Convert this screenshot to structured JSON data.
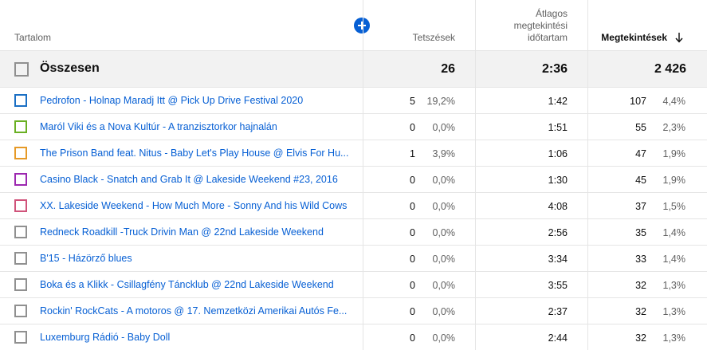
{
  "header": {
    "content_label": "Tartalom",
    "likes_label": "Tetszések",
    "avg_view_label_lines": [
      "Átlagos",
      "megtekintési",
      "időtartam"
    ],
    "views_label": "Megtekintések"
  },
  "icons": {
    "add": "plus-circle-icon",
    "sort": "arrow-down-icon"
  },
  "colors": {
    "accent": "#065fd4",
    "total_bg": "#f2f2f2"
  },
  "total": {
    "label": "Összesen",
    "likes": "26",
    "avg_duration": "2:36",
    "views": "2 426"
  },
  "rows": [
    {
      "title": "Pedrofon - Holnap Maradj Itt @ Pick Up Drive Festival 2020",
      "likes": "5",
      "likes_pct": "19,2%",
      "avg_duration": "1:42",
      "views": "107",
      "views_pct": "4,4%",
      "color": "#1a6fc4"
    },
    {
      "title": "Maról Viki és a Nova Kultúr - A tranzisztorkor hajnalán",
      "likes": "0",
      "likes_pct": "0,0%",
      "avg_duration": "1:51",
      "views": "55",
      "views_pct": "2,3%",
      "color": "#6ab023"
    },
    {
      "title": "The Prison Band feat. Nitus - Baby Let's Play House @ Elvis For Hu...",
      "likes": "1",
      "likes_pct": "3,9%",
      "avg_duration": "1:06",
      "views": "47",
      "views_pct": "1,9%",
      "color": "#e69a27"
    },
    {
      "title": "Casino Black - Snatch and Grab It @ Lakeside Weekend #23, 2016",
      "likes": "0",
      "likes_pct": "0,0%",
      "avg_duration": "1:30",
      "views": "45",
      "views_pct": "1,9%",
      "color": "#9c27b0"
    },
    {
      "title": "XX. Lakeside Weekend - How Much More - Sonny And his Wild Cows",
      "likes": "0",
      "likes_pct": "0,0%",
      "avg_duration": "4:08",
      "views": "37",
      "views_pct": "1,5%",
      "color": "#d0537a"
    },
    {
      "title": "Redneck Roadkill -Truck Drivin Man @ 22nd Lakeside Weekend",
      "likes": "0",
      "likes_pct": "0,0%",
      "avg_duration": "2:56",
      "views": "35",
      "views_pct": "1,4%",
      "color": "#909090"
    },
    {
      "title": "B'15 - Házörző blues",
      "likes": "0",
      "likes_pct": "0,0%",
      "avg_duration": "3:34",
      "views": "33",
      "views_pct": "1,4%",
      "color": "#909090"
    },
    {
      "title": "Boka és a Klikk - Csillagfény Táncklub @ 22nd Lakeside Weekend",
      "likes": "0",
      "likes_pct": "0,0%",
      "avg_duration": "3:55",
      "views": "32",
      "views_pct": "1,3%",
      "color": "#909090"
    },
    {
      "title": "Rockin' RockCats - A motoros @ 17. Nemzetközi Amerikai Autós Fe...",
      "likes": "0",
      "likes_pct": "0,0%",
      "avg_duration": "2:37",
      "views": "32",
      "views_pct": "1,3%",
      "color": "#909090"
    },
    {
      "title": "Luxemburg Rádió - Baby Doll",
      "likes": "0",
      "likes_pct": "0,0%",
      "avg_duration": "2:44",
      "views": "32",
      "views_pct": "1,3%",
      "color": "#909090"
    }
  ]
}
